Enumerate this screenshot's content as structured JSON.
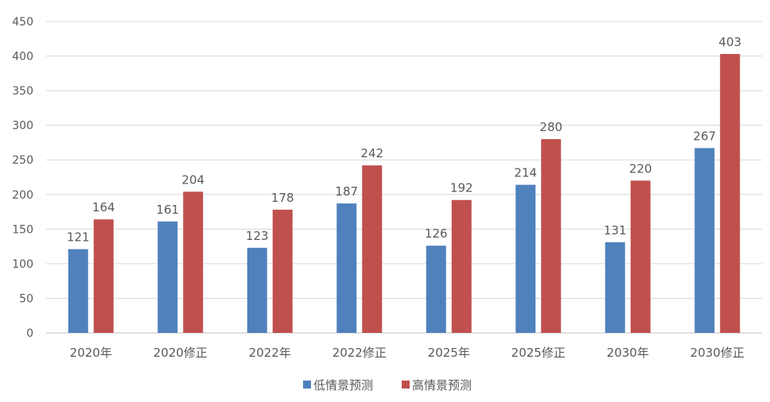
{
  "chart_data": {
    "type": "bar",
    "title": "",
    "xlabel": "",
    "ylabel": "",
    "ylim": [
      0,
      450
    ],
    "yticks": [
      0,
      50,
      100,
      150,
      200,
      250,
      300,
      350,
      400,
      450
    ],
    "grid": true,
    "legend_position": "bottom",
    "categories": [
      "2020年",
      "2020修正",
      "2022年",
      "2022修正",
      "2025年",
      "2025修正",
      "2030年",
      "2030修正"
    ],
    "series": [
      {
        "name": "低情景预测",
        "color": "#4f81bd",
        "values": [
          121,
          161,
          123,
          187,
          126,
          214,
          131,
          267
        ]
      },
      {
        "name": "高情景预测",
        "color": "#c0504d",
        "values": [
          164,
          204,
          178,
          242,
          192,
          280,
          220,
          403
        ]
      }
    ]
  }
}
